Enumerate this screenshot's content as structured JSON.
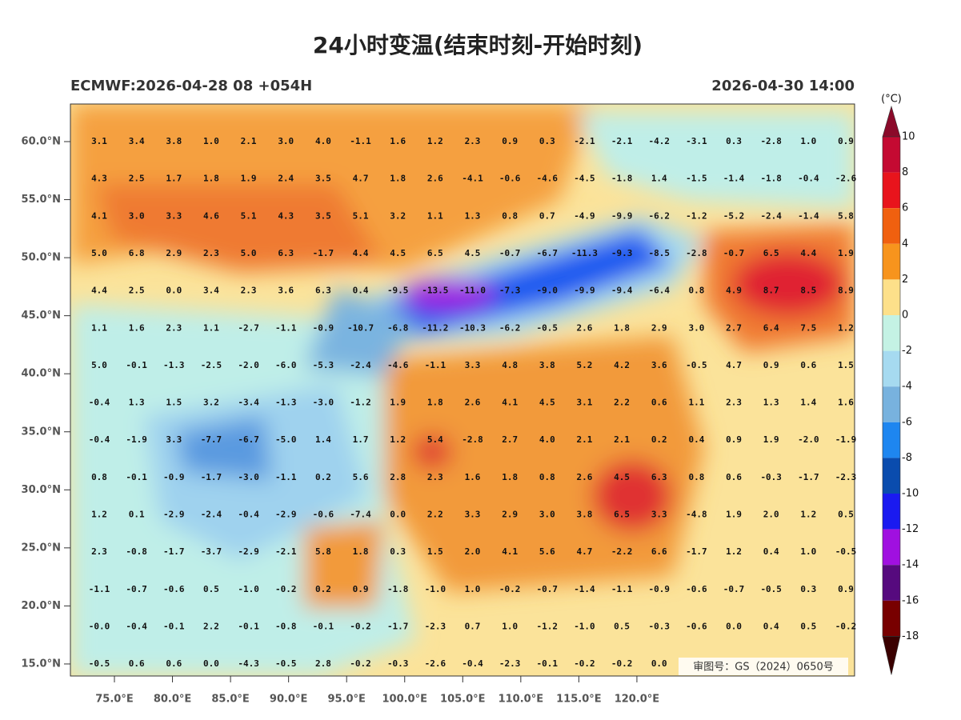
{
  "header": {
    "title": "24小时变温(结束时刻-开始时刻)",
    "left": "ECMWF:2026-04-28 08 +054H",
    "right": "2026-04-30 14:00"
  },
  "map": {
    "lat_labels": [
      "60.0°N",
      "55.0°N",
      "50.0°N",
      "45.0°N",
      "40.0°N",
      "35.0°N",
      "30.0°N",
      "25.0°N",
      "20.0°N",
      "15.0°N"
    ],
    "lon_labels": [
      "75.0°E",
      "80.0°E",
      "85.0°E",
      "90.0°E",
      "95.0°E",
      "100.0°E",
      "105.0°E",
      "110.0°E",
      "115.0°E",
      "120.0°E"
    ],
    "rows": [
      [
        "3.1",
        "3.4",
        "3.8",
        "1.0",
        "2.1",
        "3.0",
        "4.0",
        "-1.1",
        "1.6",
        "1.2",
        "2.3",
        "0.9",
        "0.3",
        "-2.1",
        "-2.1",
        "-4.2",
        "-3.1",
        "0.3",
        "-2.8",
        "1.0",
        "0.9"
      ],
      [
        "4.3",
        "2.5",
        "1.7",
        "1.8",
        "1.9",
        "2.4",
        "3.5",
        "4.7",
        "1.8",
        "2.6",
        "-4.1",
        "-0.6",
        "-4.6",
        "-4.5",
        "-1.8",
        "1.4",
        "-1.5",
        "-1.4",
        "-1.8",
        "-0.4",
        "-2.6"
      ],
      [
        "4.1",
        "3.0",
        "3.3",
        "4.6",
        "5.1",
        "4.3",
        "3.5",
        "5.1",
        "3.2",
        "1.1",
        "1.3",
        "0.8",
        "0.7",
        "-4.9",
        "-9.9",
        "-6.2",
        "-1.2",
        "-5.2",
        "-2.4",
        "-1.4",
        "5.8"
      ],
      [
        "5.0",
        "6.8",
        "2.9",
        "2.3",
        "5.0",
        "6.3",
        "-1.7",
        "4.4",
        "4.5",
        "6.5",
        "4.5",
        "-0.7",
        "-6.7",
        "-11.3",
        "-9.3",
        "-8.5",
        "-2.8",
        "-0.7",
        "6.5",
        "4.4",
        "1.9"
      ],
      [
        "4.4",
        "2.5",
        "0.0",
        "3.4",
        "2.3",
        "3.6",
        "6.3",
        "0.4",
        "-9.5",
        "-13.5",
        "-11.0",
        "-7.3",
        "-9.0",
        "-9.9",
        "-9.4",
        "-6.4",
        "0.8",
        "4.9",
        "8.7",
        "8.5",
        "8.9"
      ],
      [
        "1.1",
        "1.6",
        "2.3",
        "1.1",
        "-2.7",
        "-1.1",
        "-0.9",
        "-10.7",
        "-6.8",
        "-11.2",
        "-10.3",
        "-6.2",
        "-0.5",
        "2.6",
        "1.8",
        "2.9",
        "3.0",
        "2.7",
        "6.4",
        "7.5",
        "1.2"
      ],
      [
        "5.0",
        "-0.1",
        "-1.3",
        "-2.5",
        "-2.0",
        "-6.0",
        "-5.3",
        "-2.4",
        "-4.6",
        "-1.1",
        "3.3",
        "4.8",
        "3.8",
        "5.2",
        "4.2",
        "3.6",
        "-0.5",
        "4.7",
        "0.9",
        "0.6",
        "1.5"
      ],
      [
        "-0.4",
        "1.3",
        "1.5",
        "3.2",
        "-3.4",
        "-1.3",
        "-3.0",
        "-1.2",
        "1.9",
        "1.8",
        "2.6",
        "4.1",
        "4.5",
        "3.1",
        "2.2",
        "0.6",
        "1.1",
        "2.3",
        "1.3",
        "1.4",
        "1.6"
      ],
      [
        "-0.4",
        "-1.9",
        "3.3",
        "-7.7",
        "-6.7",
        "-5.0",
        "1.4",
        "1.7",
        "1.2",
        "5.4",
        "-2.8",
        "2.7",
        "4.0",
        "2.1",
        "2.1",
        "0.2",
        "0.4",
        "0.9",
        "1.9",
        "-2.0",
        "-1.9"
      ],
      [
        "0.8",
        "-0.1",
        "-0.9",
        "-1.7",
        "-3.0",
        "-1.1",
        "0.2",
        "5.6",
        "2.8",
        "2.3",
        "1.6",
        "1.8",
        "0.8",
        "2.6",
        "4.5",
        "6.3",
        "0.8",
        "0.6",
        "-0.3",
        "-1.7",
        "-2.3"
      ],
      [
        "1.2",
        "0.1",
        "-2.9",
        "-2.4",
        "-0.4",
        "-2.9",
        "-0.6",
        "-7.4",
        "0.0",
        "2.2",
        "3.3",
        "2.9",
        "3.0",
        "3.8",
        "6.5",
        "3.3",
        "-4.8",
        "1.9",
        "2.0",
        "1.2",
        "0.5"
      ],
      [
        "2.3",
        "-0.8",
        "-1.7",
        "-3.7",
        "-2.9",
        "-2.1",
        "5.8",
        "1.8",
        "0.3",
        "1.5",
        "2.0",
        "4.1",
        "5.6",
        "4.7",
        "-2.2",
        "6.6",
        "-1.7",
        "1.2",
        "0.4",
        "1.0",
        "-0.5"
      ],
      [
        "-1.1",
        "-0.7",
        "-0.6",
        "0.5",
        "-1.0",
        "-0.2",
        "0.2",
        "0.9",
        "-1.8",
        "-1.0",
        "1.0",
        "-0.2",
        "-0.7",
        "-1.4",
        "-1.1",
        "-0.9",
        "-0.6",
        "-0.7",
        "-0.5",
        "0.3",
        "0.9"
      ],
      [
        "-0.0",
        "-0.4",
        "-0.1",
        "2.2",
        "-0.1",
        "-0.8",
        "-0.1",
        "-0.2",
        "-1.7",
        "-2.3",
        "0.7",
        "1.0",
        "-1.2",
        "-1.0",
        "0.5",
        "-0.3",
        "-0.6",
        "0.0",
        "0.4",
        "0.5",
        "-0.2"
      ],
      [
        "-0.5",
        "0.6",
        "0.6",
        "0.0",
        "-4.3",
        "-0.5",
        "2.8",
        "-0.2",
        "-0.3",
        "-2.6",
        "-0.4",
        "-2.3",
        "-0.1",
        "-0.2",
        "-0.2",
        "0.0"
      ]
    ],
    "approval": "审图号：GS（2024）0650号"
  },
  "colorbar": {
    "unit": "(°C)",
    "labels": [
      10,
      8,
      6,
      4,
      2,
      0,
      -2,
      -4,
      -6,
      -8,
      -10,
      -12,
      -14,
      -16,
      -18
    ],
    "colors": [
      "#8b0a2a",
      "#c40a32",
      "#e8141c",
      "#f0600f",
      "#f7941d",
      "#fde08a",
      "#c4f2e4",
      "#a6daf0",
      "#78b2de",
      "#1e86f0",
      "#0a4cae",
      "#1a1af0",
      "#a010e0",
      "#560a7e",
      "#780000",
      "#3a0000"
    ]
  }
}
